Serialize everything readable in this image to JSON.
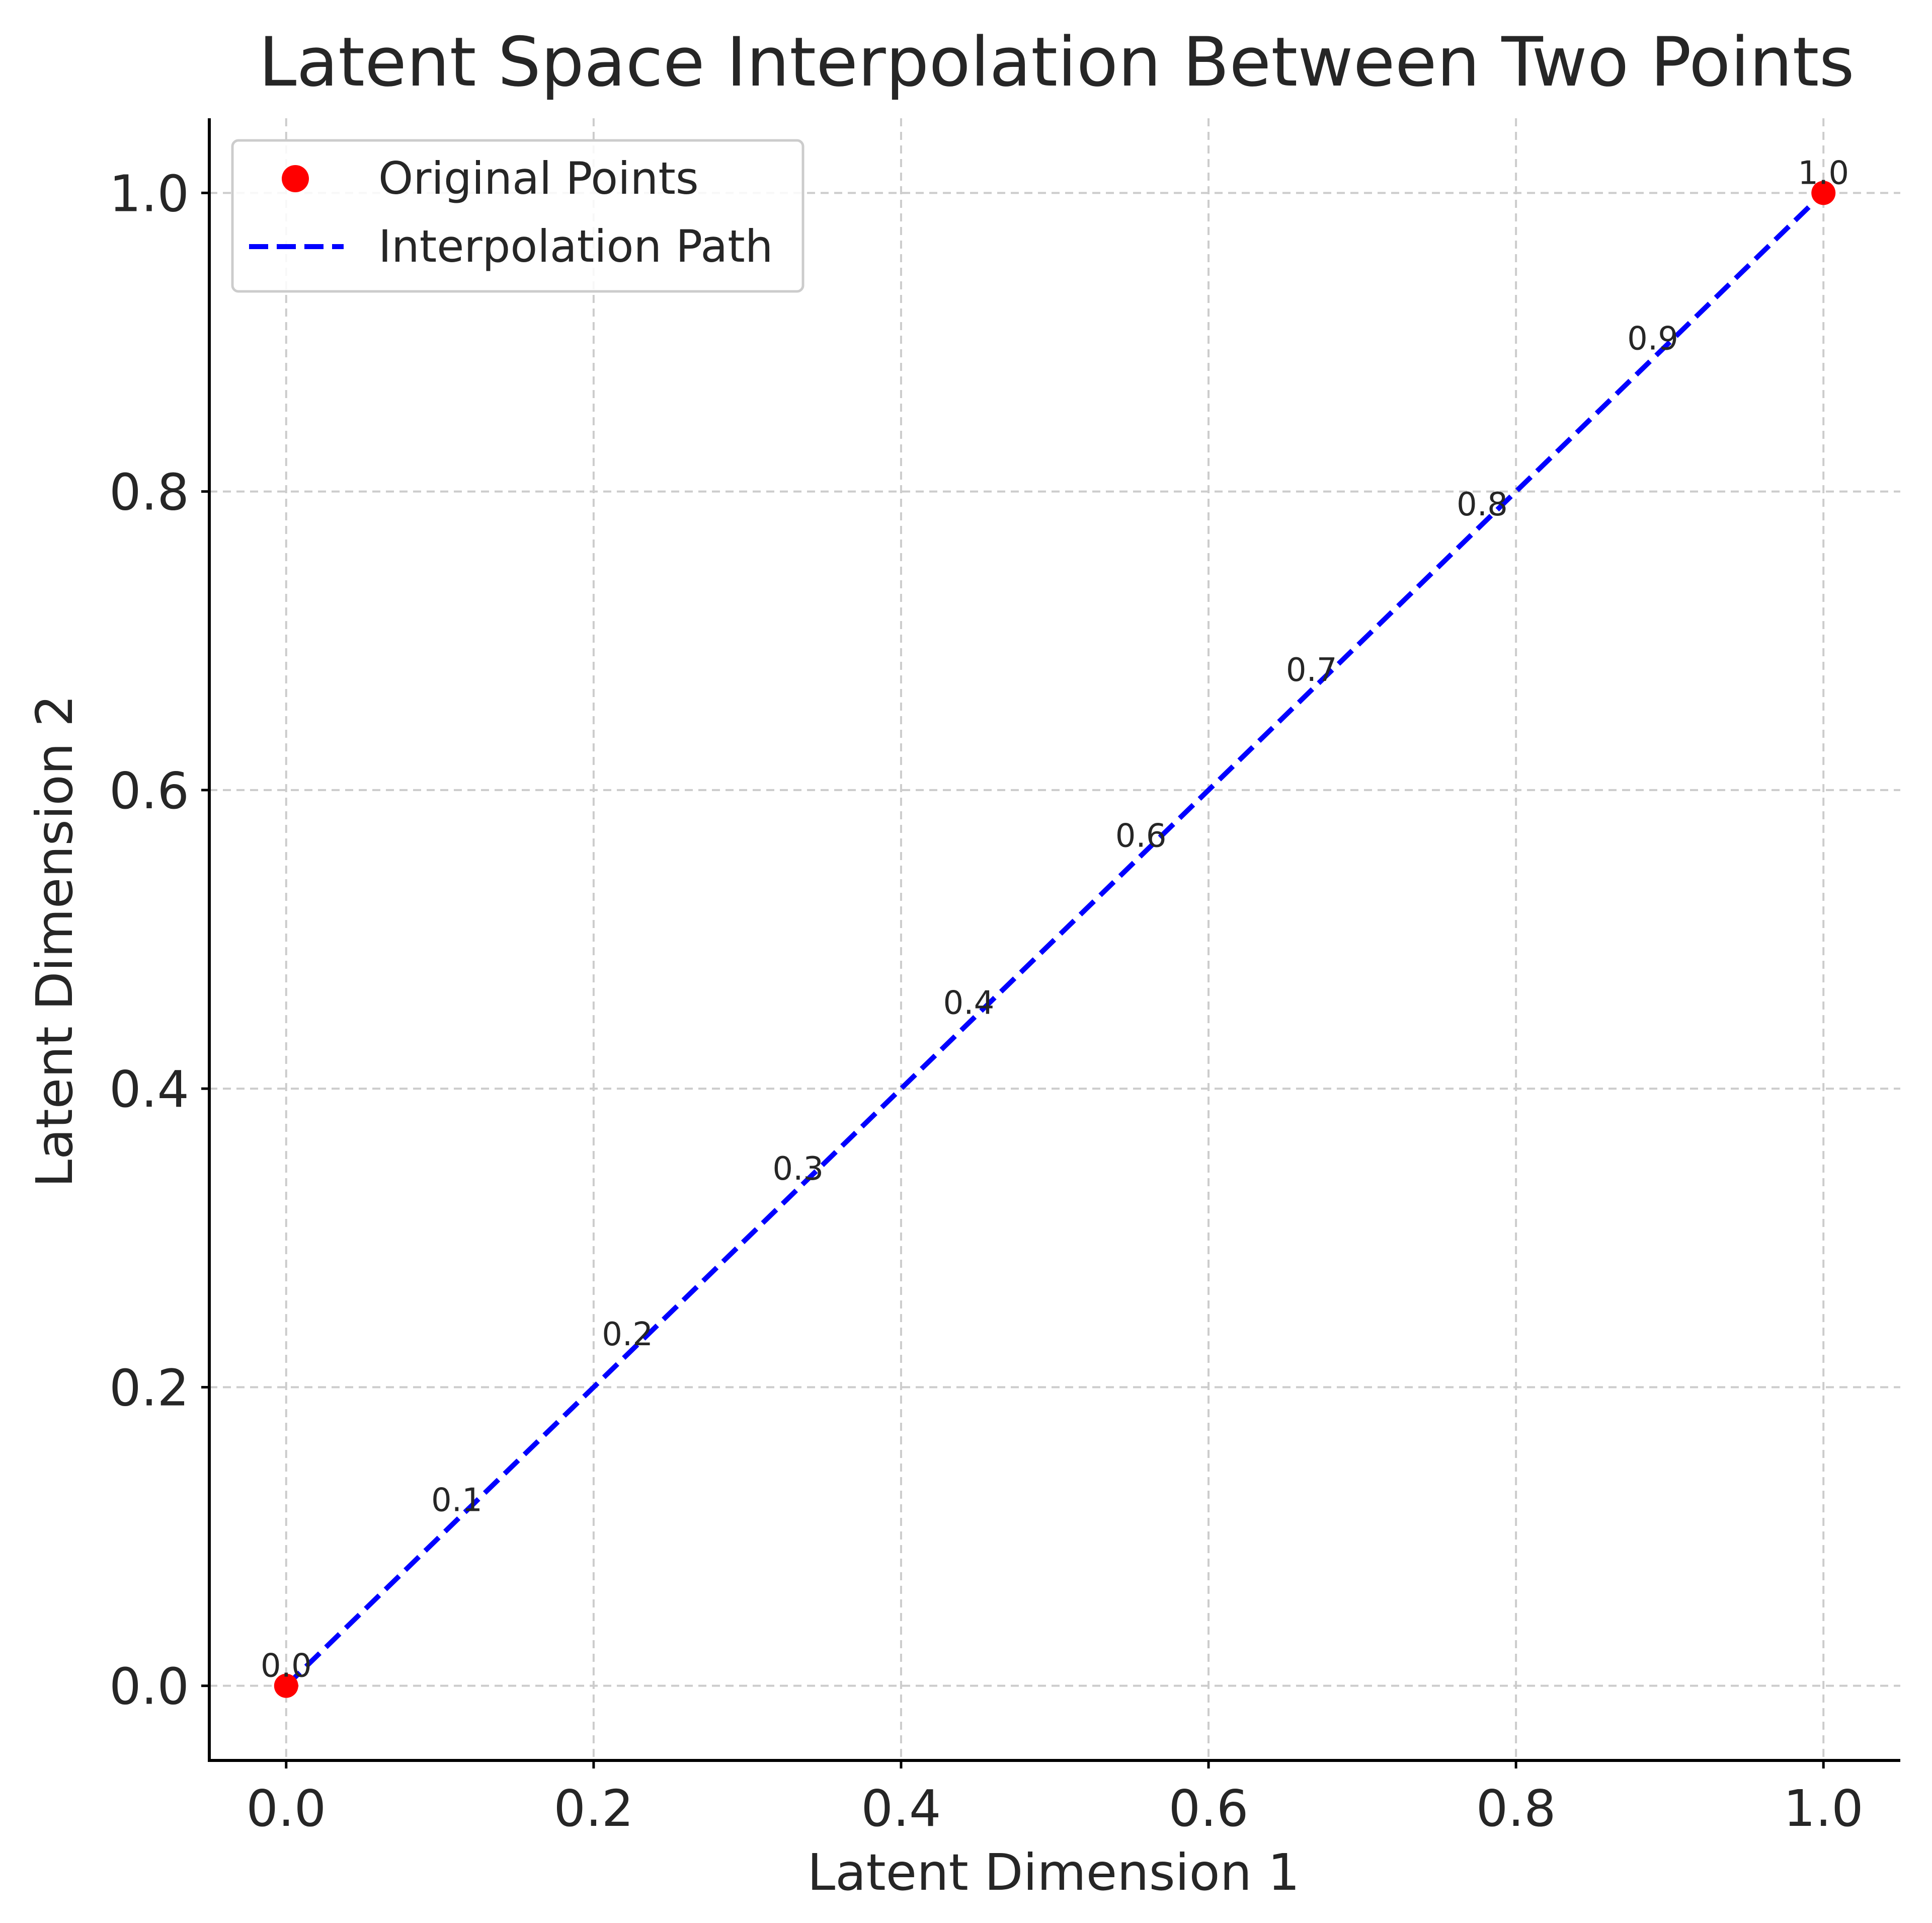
{
  "chart_data": {
    "type": "line",
    "title": "Latent Space Interpolation Between Two Points",
    "xlabel": "Latent Dimension 1",
    "ylabel": "Latent Dimension 2",
    "xlim": [
      -0.05,
      1.05
    ],
    "ylim": [
      -0.05,
      1.05
    ],
    "grid": true,
    "legend_position": "top-left",
    "x_ticks": [
      "0.0",
      "0.2",
      "0.4",
      "0.6",
      "0.8",
      "1.0"
    ],
    "y_ticks": [
      "0.0",
      "0.2",
      "0.4",
      "0.6",
      "0.8",
      "1.0"
    ],
    "series": [
      {
        "name": "Original Points",
        "kind": "scatter",
        "color": "#ff0000",
        "x": [
          0.0,
          1.0
        ],
        "y": [
          0.0,
          1.0
        ]
      },
      {
        "name": "Interpolation Path",
        "kind": "line",
        "style": "dashed",
        "color": "#0000ff",
        "x": [
          0.0,
          0.1,
          0.2,
          0.3,
          0.4,
          0.5,
          0.6,
          0.7,
          0.8,
          0.9,
          1.0
        ],
        "y": [
          0.0,
          0.1,
          0.2,
          0.3,
          0.4,
          0.5,
          0.6,
          0.7,
          0.8,
          0.9,
          1.0
        ]
      }
    ],
    "annotations": [
      {
        "text": "0.0",
        "x": 0.0,
        "y": 0.0
      },
      {
        "text": "0.1",
        "x": 0.111,
        "y": 0.111
      },
      {
        "text": "0.2",
        "x": 0.222,
        "y": 0.222
      },
      {
        "text": "0.3",
        "x": 0.333,
        "y": 0.333
      },
      {
        "text": "0.4",
        "x": 0.444,
        "y": 0.444
      },
      {
        "text": "0.6",
        "x": 0.556,
        "y": 0.556
      },
      {
        "text": "0.7",
        "x": 0.667,
        "y": 0.667
      },
      {
        "text": "0.8",
        "x": 0.778,
        "y": 0.778
      },
      {
        "text": "0.9",
        "x": 0.889,
        "y": 0.889
      },
      {
        "text": "1.0",
        "x": 1.0,
        "y": 1.0
      }
    ]
  }
}
